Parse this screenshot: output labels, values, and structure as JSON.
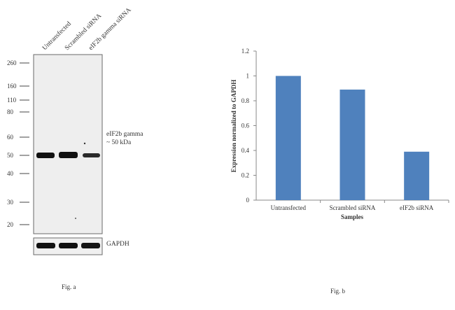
{
  "blot": {
    "lane_labels": [
      "Untransfected",
      "Scrambled siRNA",
      "eIF2b gamma siRNA"
    ],
    "markers": [
      "260",
      "160",
      "110",
      "80",
      "60",
      "50",
      "40",
      "30",
      "20"
    ],
    "band_label_line1": "eIF2b gamma",
    "band_label_line2": "~ 50 kDa",
    "control_label": "GAPDH",
    "caption": "Fig. a"
  },
  "chart_data": {
    "type": "bar",
    "categories": [
      "Untransfected",
      "Scrambled siRNA",
      "eIF2b siRNA"
    ],
    "values": [
      1.0,
      0.89,
      0.39
    ],
    "ylabel": "Expression  normalized to GAPDH",
    "xlabel": "Samples",
    "yticks": [
      "0",
      "0.2",
      "0.4",
      "0.6",
      "0.8",
      "1",
      "1.2"
    ],
    "ylim": [
      0,
      1.2
    ],
    "bar_color": "#4f81bd",
    "grid": false
  },
  "caption_b": "Fig. b"
}
